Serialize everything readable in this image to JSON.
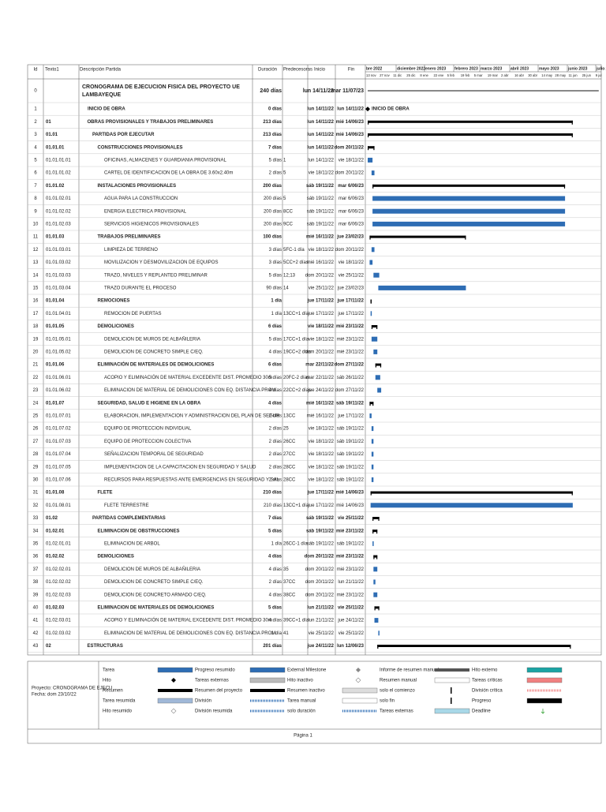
{
  "header": {
    "columns": [
      "Id",
      "Texto1",
      "Descripción Partida",
      "Duración",
      "Predecesoras",
      "Inicio",
      "Fin"
    ],
    "months": [
      "bre 2022",
      "diciembre 2022",
      "enero 2023",
      "febrero 2023",
      "marzo 2023",
      "abril 2023",
      "mayo 2023",
      "junio 2023",
      "julio 202"
    ],
    "weeks": [
      "13 nov",
      "27 nov",
      "11 dic",
      "25 dic",
      "8 ene",
      "22 ene",
      "5 feb",
      "19 feb",
      "5 mar",
      "19 mar",
      "2 abr",
      "16 abr",
      "30 abr",
      "14 may",
      "28 may",
      "11 jun",
      "25 jun",
      "9 jul"
    ]
  },
  "rows": [
    {
      "id": 0,
      "desc": "CRONOGRAMA DE EJECUCION FISICA DEL PROYECTO UE LAMBAYEQUE",
      "dur": "240 días",
      "start": "lun 14/11/22",
      "end": "mar 11/07/23"
    },
    {
      "id": 1,
      "desc": "INICIO DE OBRA",
      "dur": "0 días",
      "start": "lun 14/11/22",
      "end": "lun 14/11/22"
    },
    {
      "id": 2,
      "code": "01",
      "desc": "OBRAS PROVISIONALES Y TRABAJOS PRELIMINARES",
      "dur": "213 días",
      "start": "lun 14/11/22",
      "end": "mié 14/06/23"
    },
    {
      "id": 3,
      "code": "01.01",
      "desc": "PARTIDAS POR EJECUTAR",
      "dur": "213 días",
      "start": "lun 14/11/22",
      "end": "mié 14/06/23"
    },
    {
      "id": 4,
      "code": "01.01.01",
      "desc": "CONSTRUCCIONES PROVISIONALES",
      "dur": "7 días",
      "start": "lun 14/11/22",
      "end": "dom 20/11/22"
    },
    {
      "id": 5,
      "code": "01.01.01.01",
      "desc": "OFICINAS, ALMACENES Y GUARDIANIA PROVISIONAL",
      "dur": "5 días",
      "pred": "1",
      "start": "lun 14/11/22",
      "end": "vie 18/11/22"
    },
    {
      "id": 6,
      "code": "01.01.01.02",
      "desc": "CARTEL DE IDENTIFICACION DE LA OBRA DE 3.60x2.40m",
      "dur": "2 días",
      "pred": "5",
      "start": "vie 18/11/22",
      "end": "dom 20/11/22"
    },
    {
      "id": 7,
      "code": "01.01.02",
      "desc": "INSTALACIONES PROVISIONALES",
      "dur": "200 días",
      "start": "sáb 19/11/22",
      "end": "mar 6/06/23"
    },
    {
      "id": 8,
      "code": "01.01.02.01",
      "desc": "AGUA PARA LA CONSTRUCCION",
      "dur": "200 días",
      "pred": "5",
      "start": "sáb 19/11/22",
      "end": "mar 6/06/23"
    },
    {
      "id": 9,
      "code": "01.01.02.02",
      "desc": "ENERGIA ELECTRICA PROVISIONAL",
      "dur": "200 días",
      "pred": "8CC",
      "start": "sáb 19/11/22",
      "end": "mar 6/06/23"
    },
    {
      "id": 10,
      "code": "01.01.02.03",
      "desc": "SERVICIOS HIGIENICOS PROVISIONALES",
      "dur": "200 días",
      "pred": "9CC",
      "start": "sáb 19/11/22",
      "end": "mar 6/06/23"
    },
    {
      "id": 11,
      "code": "01.01.03",
      "desc": "TRABAJOS PRELIMINARES",
      "dur": "100 días",
      "start": "mié 16/11/22",
      "end": "jue 23/02/23"
    },
    {
      "id": 12,
      "code": "01.01.03.01",
      "desc": "LIMPIEZA DE TERRENO",
      "dur": "3 días",
      "pred": "5FC-1 día",
      "start": "vie 18/11/22",
      "end": "dom 20/11/22"
    },
    {
      "id": 13,
      "code": "01.01.03.02",
      "desc": "MOVILIZACION Y DESMOVILIZACION DE EQUIPOS",
      "dur": "3 días",
      "pred": "5CC+2 días",
      "start": "mié 16/11/22",
      "end": "vie 18/11/22"
    },
    {
      "id": 14,
      "code": "01.01.03.03",
      "desc": "TRAZO, NIVELES Y REPLANTEO PRELIMINAR",
      "dur": "5 días",
      "pred": "12;13",
      "start": "dom 20/11/22",
      "end": "vie 25/11/22"
    },
    {
      "id": 15,
      "code": "01.01.03.04",
      "desc": "TRAZO DURANTE EL PROCESO",
      "dur": "90 días",
      "pred": "14",
      "start": "vie 25/11/22",
      "end": "jue 23/02/23"
    },
    {
      "id": 16,
      "code": "01.01.04",
      "desc": "REMOCIONES",
      "dur": "1 día",
      "start": "jue 17/11/22",
      "end": "jue 17/11/22"
    },
    {
      "id": 17,
      "code": "01.01.04.01",
      "desc": "REMOCION DE PUERTAS",
      "dur": "1 día",
      "pred": "13CC+1 día",
      "start": "jue 17/11/22",
      "end": "jue 17/11/22"
    },
    {
      "id": 18,
      "code": "01.01.05",
      "desc": "DEMOLICIONES",
      "dur": "6 días",
      "start": "vie 18/11/22",
      "end": "mié 23/11/22"
    },
    {
      "id": 19,
      "code": "01.01.05.01",
      "desc": "DEMOLICION DE MUROS DE ALBAÑILERIA",
      "dur": "5 días",
      "pred": "17CC+1 día",
      "start": "vie 18/11/22",
      "end": "mié 23/11/22"
    },
    {
      "id": 20,
      "code": "01.01.05.02",
      "desc": "DEMOLICION DE CONCRETO SIMPLE C/EQ.",
      "dur": "4 días",
      "pred": "19CC+2 días",
      "start": "dom 20/11/22",
      "end": "mié 23/11/22"
    },
    {
      "id": 21,
      "code": "01.01.06",
      "desc": "ELIMINACIÓN DE MATERIALES DE DEMOLICIONES",
      "dur": "6 días",
      "start": "mar 22/11/22",
      "end": "dom 27/11/22"
    },
    {
      "id": 22,
      "code": "01.01.06.01",
      "desc": "ACOPIO Y ELIMINACIÓN DE MATERIAL EXCEDENTE DIST. PROMEDIO 30m",
      "dur": "5 días",
      "pred": "20FC-2 días",
      "start": "mar 22/11/22",
      "end": "sáb 26/11/22"
    },
    {
      "id": 23,
      "code": "01.01.06.02",
      "desc": "ELIMINACION DE MATERIAL DE DEMOLICIONES CON EQ. DISTANCIA PROM.",
      "dur": "4 días",
      "pred": "22CC+2 días",
      "start": "jue 24/11/22",
      "end": "dom 27/11/22"
    },
    {
      "id": 24,
      "code": "01.01.07",
      "desc": "SEGURIDAD, SALUD E HIGIENE EN LA OBRA",
      "dur": "4 días",
      "start": "mié 16/11/22",
      "end": "sáb 19/11/22"
    },
    {
      "id": 25,
      "code": "01.01.07.01",
      "desc": "ELABORACION, IMPLEMENTACION Y ADMINISTRACION DEL PLAN DE SEGUR",
      "dur": "2 días",
      "pred": "13CC",
      "start": "mié 16/11/22",
      "end": "jue 17/11/22"
    },
    {
      "id": 26,
      "code": "01.01.07.02",
      "desc": "EQUIPO DE PROTECCION INDIVIDUAL",
      "dur": "2 días",
      "pred": "25",
      "start": "vie 18/11/22",
      "end": "sáb 19/11/22"
    },
    {
      "id": 27,
      "code": "01.01.07.03",
      "desc": "EQUIPO DE PROTECCION COLECTIVA",
      "dur": "2 días",
      "pred": "26CC",
      "start": "vie 18/11/22",
      "end": "sáb 19/11/22"
    },
    {
      "id": 28,
      "code": "01.01.07.04",
      "desc": "SEÑALIZACION TEMPORAL DE SEGURIDAD",
      "dur": "2 días",
      "pred": "27CC",
      "start": "vie 18/11/22",
      "end": "sáb 19/11/22"
    },
    {
      "id": 29,
      "code": "01.01.07.05",
      "desc": "IMPLEMENTACION DE LA CAPACITACION EN SEGURIDAD Y SALUD",
      "dur": "2 días",
      "pred": "28CC",
      "start": "vie 18/11/22",
      "end": "sáb 19/11/22"
    },
    {
      "id": 30,
      "code": "01.01.07.06",
      "desc": "RECURSOS PARA RESPUESTAS ANTE EMERGENCIAS EN SEGURIDAD Y SAL",
      "dur": "2 días",
      "pred": "28CC",
      "start": "vie 18/11/22",
      "end": "sáb 19/11/22"
    },
    {
      "id": 31,
      "code": "01.01.08",
      "desc": "FLETE",
      "dur": "210 días",
      "start": "jue 17/11/22",
      "end": "mié 14/06/23"
    },
    {
      "id": 32,
      "code": "01.01.08.01",
      "desc": "FLETE TERRESTRE",
      "dur": "210 días",
      "pred": "13CC+1 día",
      "start": "jue 17/11/22",
      "end": "mié 14/06/23"
    },
    {
      "id": 33,
      "code": "01.02",
      "desc": "PARTIDAS COMPLEMENTARIAS",
      "dur": "7 días",
      "start": "sáb 19/11/22",
      "end": "vie 25/11/22"
    },
    {
      "id": 34,
      "code": "01.02.01",
      "desc": "ELIMINACION DE OBSTRUCCIONES",
      "dur": "5 días",
      "start": "sáb 19/11/22",
      "end": "mié 23/11/22"
    },
    {
      "id": 35,
      "code": "01.02.01.01",
      "desc": "ELIMINACION DE ARBOL",
      "dur": "1 día",
      "pred": "26CC-1 día",
      "start": "sáb 19/11/22",
      "end": "sáb 19/11/22"
    },
    {
      "id": 36,
      "code": "01.02.02",
      "desc": "DEMOLICIONES",
      "dur": "4 días",
      "start": "dom 20/11/22",
      "end": "mié 23/11/22"
    },
    {
      "id": 37,
      "code": "01.02.02.01",
      "desc": "DEMOLICION DE MUROS DE ALBAÑILERIA",
      "dur": "4 días",
      "pred": "35",
      "start": "dom 20/11/22",
      "end": "mié 23/11/22"
    },
    {
      "id": 38,
      "code": "01.02.02.02",
      "desc": "DEMOLICION DE CONCRETO SIMPLE C/EQ.",
      "dur": "2 días",
      "pred": "37CC",
      "start": "dom 20/11/22",
      "end": "lun 21/11/22"
    },
    {
      "id": 39,
      "code": "01.02.02.03",
      "desc": "DEMOLICION DE CONCRETO ARMADO C/EQ.",
      "dur": "4 días",
      "pred": "38CC",
      "start": "dom 20/11/22",
      "end": "mié 23/11/22"
    },
    {
      "id": 40,
      "code": "01.02.03",
      "desc": "ELIMINACION DE MATERIALES DE DEMOLICIONES",
      "dur": "5 días",
      "start": "lun 21/11/22",
      "end": "vie 25/11/22"
    },
    {
      "id": 41,
      "code": "01.02.03.01",
      "desc": "ACOPIO Y ELIMINACIÓN DE MATERIAL EXCEDENTE DIST. PROMEDIO 30m",
      "dur": "4 días",
      "pred": "39CC+1 día",
      "start": "lun 21/11/22",
      "end": "jue 24/11/22"
    },
    {
      "id": 42,
      "code": "01.02.03.02",
      "desc": "ELIMINACION DE MATERIAL DE DEMOLICIONES CON EQ. DISTANCIA PROM.",
      "dur": "1 día",
      "pred": "41",
      "start": "vie 25/11/22",
      "end": "vie 25/11/22"
    },
    {
      "id": 43,
      "code": "02",
      "desc": "ESTRUCTURAS",
      "dur": "201 días",
      "start": "jue 24/11/22",
      "end": "lun 12/06/23"
    }
  ],
  "legend": {
    "project": "Proyecto: CRONOGRAMA DE EJECU",
    "date": "Fecha: dom 23/10/22",
    "items": [
      "Tarea",
      "Hito",
      "Resumen",
      "Tarea resumida",
      "Hito resumido",
      "Progreso resumido",
      "Tareas externas",
      "Resumen del proyecto",
      "División",
      "División resumida",
      "External Milestone",
      "Hito inactivo",
      "Resumen inactivo",
      "Tarea manual",
      "solo duración",
      "Informe de resumen manual",
      "Resumen manual",
      "solo el comienzo",
      "solo fin",
      "Tareas externas",
      "Hito externo",
      "Tareas críticas",
      "División crítica",
      "Progreso",
      "Deadline"
    ]
  },
  "footer": "Página 1"
}
